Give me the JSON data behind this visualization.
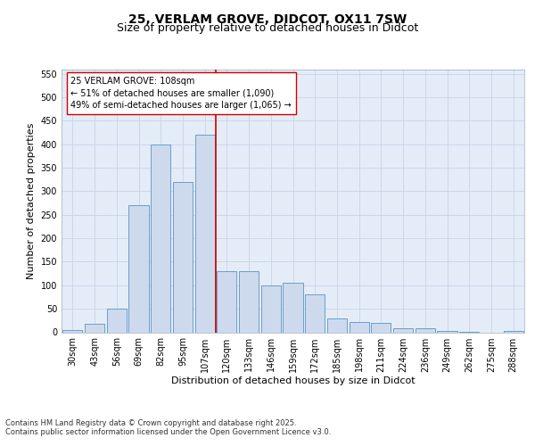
{
  "title_line1": "25, VERLAM GROVE, DIDCOT, OX11 7SW",
  "title_line2": "Size of property relative to detached houses in Didcot",
  "xlabel": "Distribution of detached houses by size in Didcot",
  "ylabel": "Number of detached properties",
  "categories": [
    "30sqm",
    "43sqm",
    "56sqm",
    "69sqm",
    "82sqm",
    "95sqm",
    "107sqm",
    "120sqm",
    "133sqm",
    "146sqm",
    "159sqm",
    "172sqm",
    "185sqm",
    "198sqm",
    "211sqm",
    "224sqm",
    "236sqm",
    "249sqm",
    "262sqm",
    "275sqm",
    "288sqm"
  ],
  "values": [
    5,
    18,
    50,
    270,
    400,
    320,
    420,
    130,
    130,
    100,
    105,
    80,
    30,
    22,
    20,
    8,
    8,
    2,
    1,
    0,
    2
  ],
  "bar_color": "#cddaed",
  "bar_edge_color": "#6b9ec8",
  "grid_color": "#c8d4e8",
  "background_color": "#e4ecf7",
  "vline_color": "#cc0000",
  "vline_pos": 6.5,
  "annotation_text": "25 VERLAM GROVE: 108sqm\n← 51% of detached houses are smaller (1,090)\n49% of semi-detached houses are larger (1,065) →",
  "annotation_box_facecolor": "#ffffff",
  "annotation_box_edgecolor": "#cc0000",
  "ylim": [
    0,
    560
  ],
  "yticks": [
    0,
    50,
    100,
    150,
    200,
    250,
    300,
    350,
    400,
    450,
    500,
    550
  ],
  "footer_text": "Contains HM Land Registry data © Crown copyright and database right 2025.\nContains public sector information licensed under the Open Government Licence v3.0.",
  "title_fontsize": 10,
  "subtitle_fontsize": 9,
  "axis_label_fontsize": 8,
  "ylabel_fontsize": 8,
  "tick_fontsize": 7,
  "annotation_fontsize": 7,
  "footer_fontsize": 6
}
